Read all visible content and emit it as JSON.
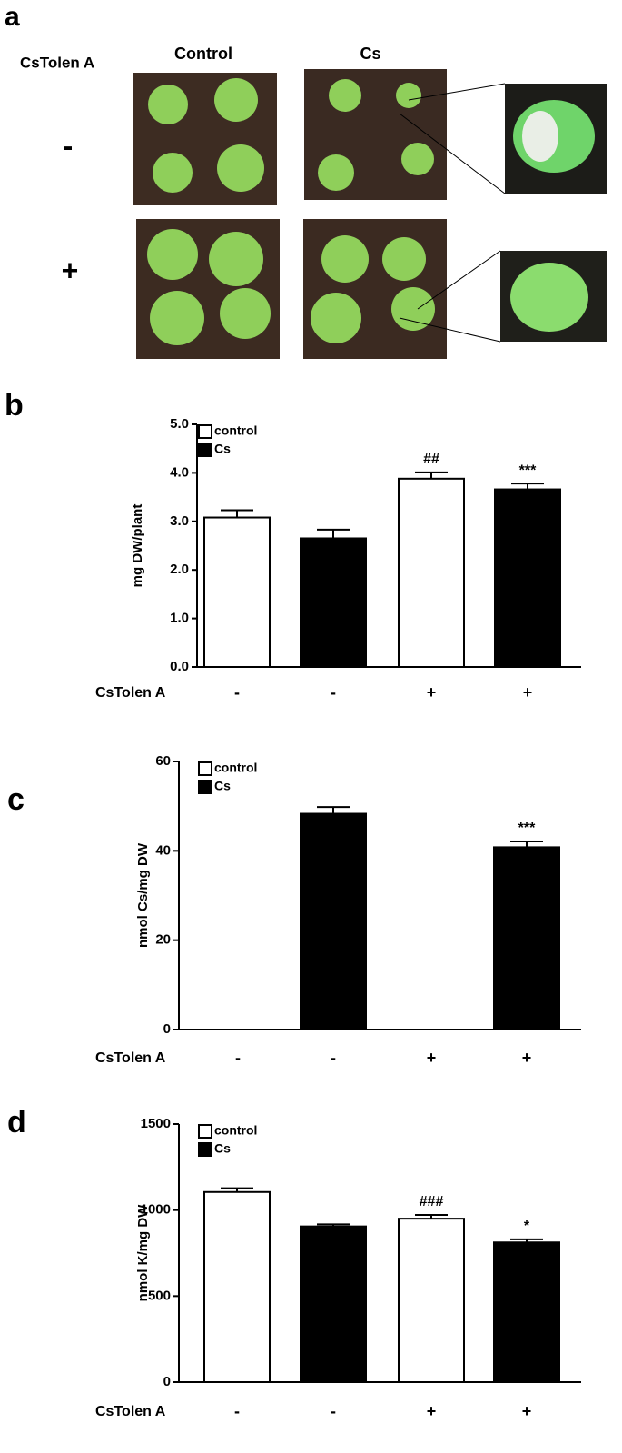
{
  "photo_panel": {
    "panel_label": "a",
    "row_header": "CsTolen A",
    "columns": [
      "Control",
      "Cs"
    ],
    "rows": [
      "-",
      "+"
    ]
  },
  "chart_data": [
    {
      "type": "bar",
      "panel_label": "b",
      "ylabel": "mg DW/plant",
      "xlabel": "CsTolen A",
      "categories": [
        "-",
        "-",
        "+",
        "+"
      ],
      "series": [
        {
          "name": "control",
          "color": "#ffffff",
          "values": [
            3.08,
            null,
            3.88,
            null
          ],
          "errors": [
            0.15,
            null,
            0.13,
            null
          ],
          "annotations": [
            null,
            null,
            "##",
            null
          ]
        },
        {
          "name": "Cs",
          "color": "#000000",
          "values": [
            null,
            2.65,
            null,
            3.66
          ],
          "errors": [
            null,
            0.18,
            null,
            0.12
          ],
          "annotations": [
            null,
            null,
            null,
            "***"
          ]
        }
      ],
      "ylim": [
        0,
        5
      ],
      "yticks": [
        {
          "value": 0,
          "label": "0.0"
        },
        {
          "value": 1,
          "label": "1.0"
        },
        {
          "value": 2,
          "label": "2.0"
        },
        {
          "value": 3,
          "label": "3.0"
        },
        {
          "value": 4,
          "label": "4.0"
        },
        {
          "value": 5,
          "label": "5.0"
        }
      ]
    },
    {
      "type": "bar",
      "panel_label": "c",
      "ylabel": "nmol Cs/mg DW",
      "xlabel": "CsTolen A",
      "categories": [
        "-",
        "-",
        "+",
        "+"
      ],
      "series": [
        {
          "name": "control",
          "color": "#ffffff",
          "values": [
            0,
            null,
            0,
            null
          ],
          "errors": [
            null,
            null,
            null,
            null
          ],
          "annotations": [
            null,
            null,
            null,
            null
          ]
        },
        {
          "name": "Cs",
          "color": "#000000",
          "values": [
            null,
            48.3,
            null,
            40.8
          ],
          "errors": [
            null,
            1.5,
            null,
            1.3
          ],
          "annotations": [
            null,
            null,
            null,
            "***"
          ]
        }
      ],
      "ylim": [
        0,
        60
      ],
      "yticks": [
        0,
        20,
        40,
        60
      ]
    },
    {
      "type": "bar",
      "panel_label": "d",
      "ylabel": "nmol K/mg DW",
      "xlabel": "CsTolen A",
      "categories": [
        "-",
        "-",
        "+",
        "+"
      ],
      "series": [
        {
          "name": "control",
          "color": "#ffffff",
          "values": [
            1105,
            null,
            950,
            null
          ],
          "errors": [
            22,
            null,
            22,
            null
          ],
          "annotations": [
            null,
            null,
            "###",
            null
          ]
        },
        {
          "name": "Cs",
          "color": "#000000",
          "values": [
            null,
            905,
            null,
            812
          ],
          "errors": [
            null,
            12,
            null,
            18
          ],
          "annotations": [
            null,
            null,
            null,
            "*"
          ]
        }
      ],
      "ylim": [
        0,
        1500
      ],
      "yticks": [
        0,
        500,
        1000,
        1500
      ]
    }
  ]
}
